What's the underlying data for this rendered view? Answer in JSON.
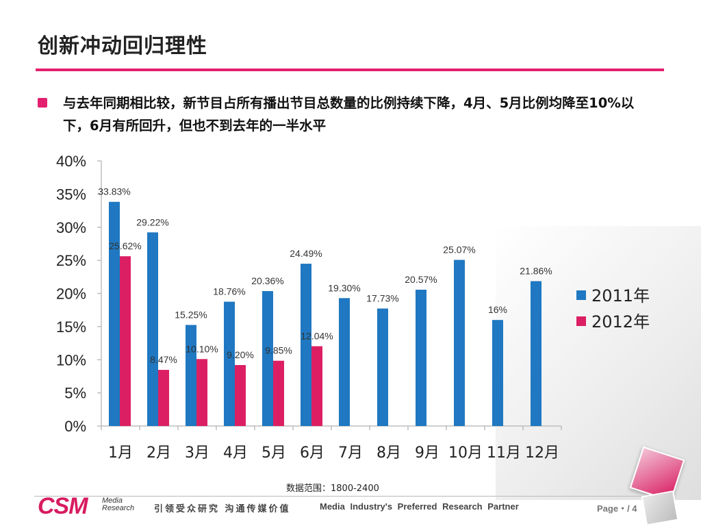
{
  "slide": {
    "title": "创新冲动回归理性",
    "bullet": "与去年同期相比较，新节目占所有播出节目总数量的比例持续下降，4月、5月比例均降至10%以下，6月有所回升，但也不到去年的一半水平",
    "source_note": "数据范围：1800-2400"
  },
  "footer": {
    "logo_text": "CSM",
    "logo_sub": "Media Research",
    "slogan_cn": "引领受众研究 沟通传媒价值",
    "slogan_en": "Media Industry's Preferred Research Partner",
    "page": "Page・/ 4"
  },
  "colors": {
    "accent": "#e3206f",
    "series2011": "#1f78c1",
    "series2012": "#dc1f63"
  },
  "chart_data": {
    "type": "bar",
    "categories": [
      "1月",
      "2月",
      "3月",
      "4月",
      "5月",
      "6月",
      "7月",
      "8月",
      "9月",
      "10月",
      "11月",
      "12月"
    ],
    "series": [
      {
        "name": "2011年",
        "values": [
          33.83,
          29.22,
          15.25,
          18.76,
          20.36,
          24.49,
          19.3,
          17.73,
          20.57,
          25.07,
          16,
          21.86
        ],
        "labels": [
          "33.83%",
          "29.22%",
          "15.25%",
          "18.76%",
          "20.36%",
          "24.49%",
          "19.30%",
          "17.73%",
          "20.57%",
          "25.07%",
          "16%",
          "21.86%"
        ]
      },
      {
        "name": "2012年",
        "values": [
          25.62,
          8.47,
          10.1,
          9.2,
          9.85,
          12.04,
          null,
          null,
          null,
          null,
          null,
          null
        ],
        "labels": [
          "25.62%",
          "8.47%",
          "10.10%",
          "9.20%",
          "9.85%",
          "12.04%",
          "",
          "",
          "",
          "",
          "",
          ""
        ]
      }
    ],
    "ylim": [
      0,
      40
    ],
    "yticks": [
      "0%",
      "5%",
      "10%",
      "15%",
      "20%",
      "25%",
      "30%",
      "35%",
      "40%"
    ],
    "legend_position": "right",
    "grid": false
  }
}
